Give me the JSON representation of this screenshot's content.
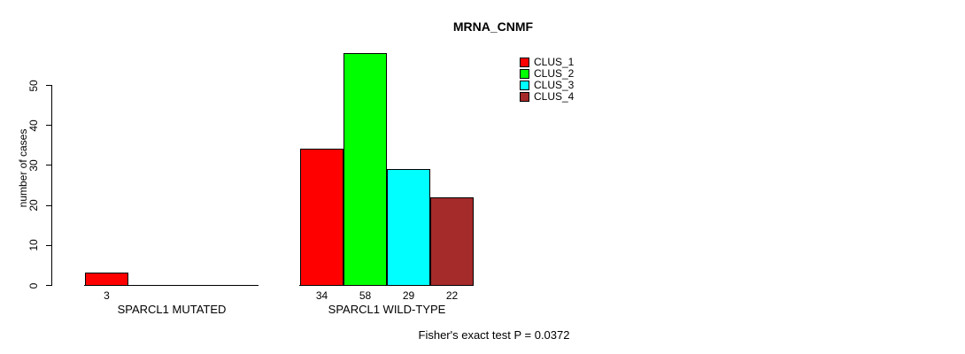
{
  "chart_data": {
    "type": "bar",
    "title": "MRNA_CNMF",
    "ylabel": "number of cases",
    "xlabel": "",
    "yticks": [
      0,
      10,
      20,
      30,
      40,
      50
    ],
    "ylim": [
      0,
      58
    ],
    "grid": false,
    "legend_position": "top-right",
    "series": [
      {
        "name": "CLUS_1",
        "color": "#ff0000"
      },
      {
        "name": "CLUS_2",
        "color": "#00ff00"
      },
      {
        "name": "CLUS_3",
        "color": "#00ffff"
      },
      {
        "name": "CLUS_4",
        "color": "#a52a2a"
      }
    ],
    "groups": [
      {
        "label": "SPARCL1 MUTATED",
        "values": [
          3,
          0,
          0,
          0
        ],
        "value_labels": [
          "3",
          "",
          "",
          ""
        ]
      },
      {
        "label": "SPARCL1 WILD-TYPE",
        "values": [
          34,
          58,
          29,
          22
        ],
        "value_labels": [
          "34",
          "58",
          "29",
          "22"
        ]
      }
    ],
    "annotation": "Fisher's exact test P = 0.0372"
  }
}
